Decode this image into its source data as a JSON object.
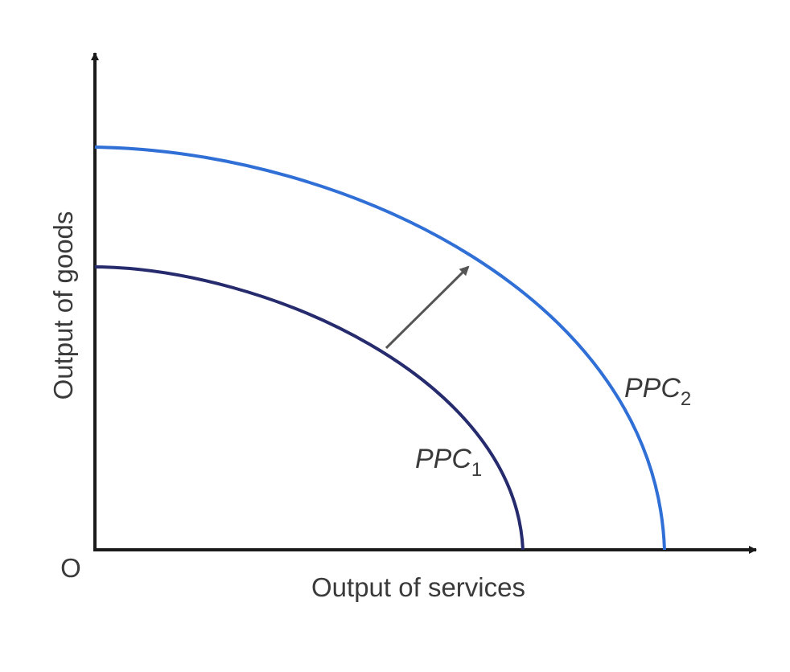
{
  "diagram": {
    "x_axis_label": "Output of services",
    "y_axis_label": "Output of goods",
    "origin_label": "O",
    "curves": [
      {
        "label": "PPC",
        "subscript": "1",
        "color": "#262b6e"
      },
      {
        "label": "PPC",
        "subscript": "2",
        "color": "#2f6fd6"
      }
    ],
    "axis_color": "#1a1a1a",
    "shift_arrow_color": "#555555"
  }
}
